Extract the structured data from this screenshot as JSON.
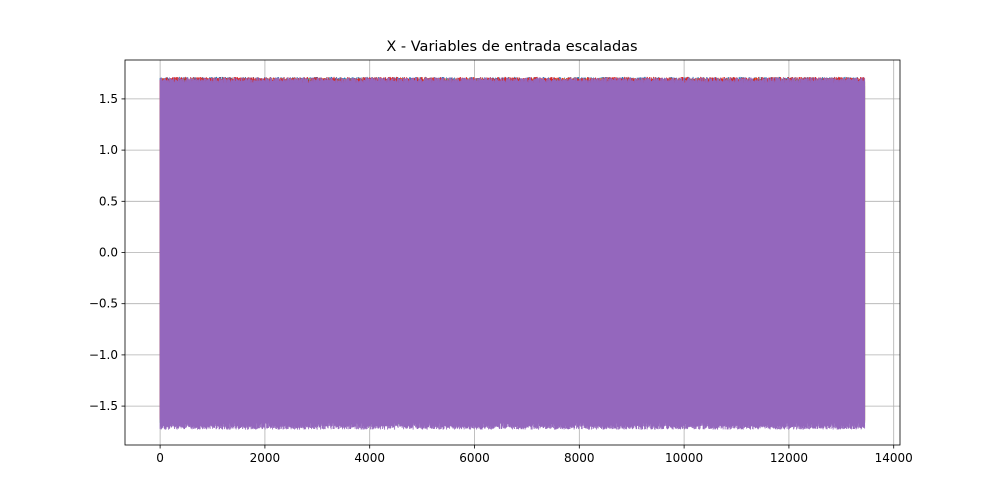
{
  "chart_data": {
    "type": "line",
    "title": "X - Variables de entrada escaladas",
    "xlabel": "",
    "ylabel": "",
    "xlim": [
      -670,
      14120
    ],
    "ylim": [
      -1.88,
      1.88
    ],
    "x_range": [
      0,
      13450
    ],
    "grid": true,
    "x_ticks": [
      0,
      2000,
      4000,
      6000,
      8000,
      10000,
      12000,
      14000
    ],
    "x_tick_labels": [
      "0",
      "2000",
      "4000",
      "6000",
      "8000",
      "10000",
      "12000",
      "14000"
    ],
    "y_ticks": [
      -1.5,
      -1.0,
      -0.5,
      0.0,
      0.5,
      1.0,
      1.5
    ],
    "y_tick_labels": [
      "−1.5",
      "−1.0",
      "−0.5",
      "0.0",
      "0.5",
      "1.0",
      "1.5"
    ],
    "series": [
      {
        "color": "#1f77b4",
        "y_min": -1.66,
        "y_max": 1.72
      },
      {
        "color": "#ff7f0e",
        "y_min": -1.65,
        "y_max": 1.71
      },
      {
        "color": "#2ca02c",
        "y_min": -1.68,
        "y_max": 1.7
      },
      {
        "color": "#d62728",
        "y_min": -1.66,
        "y_max": 1.72
      },
      {
        "color": "#9467bd",
        "y_min": -1.73,
        "y_max": 1.71
      }
    ]
  }
}
